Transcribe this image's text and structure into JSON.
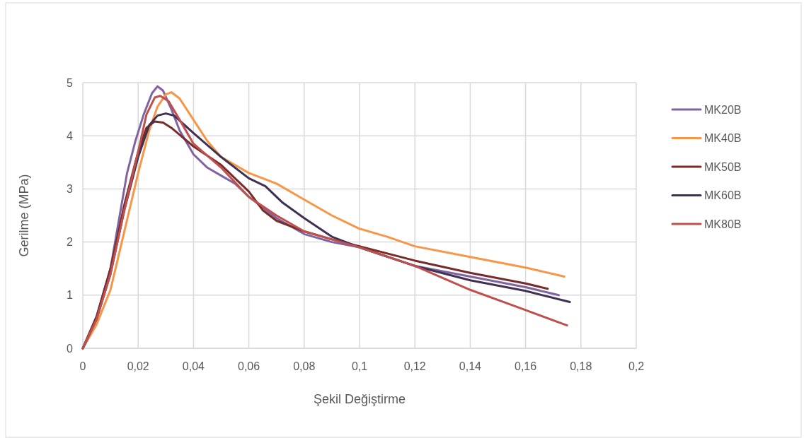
{
  "chart_data": {
    "type": "line",
    "xlabel": "Şekil Değiştirme",
    "ylabel": "Gerilme (MPa)",
    "xlim": [
      0,
      0.2
    ],
    "ylim": [
      0,
      5
    ],
    "xticks": [
      0,
      {
        "value": 0.02,
        "label": "0,02"
      },
      {
        "value": 0.04,
        "label": "0,04"
      },
      {
        "value": 0.06,
        "label": "0,06"
      },
      {
        "value": 0.08,
        "label": "0,08"
      },
      {
        "value": 0.1,
        "label": "0,1"
      },
      {
        "value": 0.12,
        "label": "0,12"
      },
      {
        "value": 0.14,
        "label": "0,14"
      },
      {
        "value": 0.16,
        "label": "0,16"
      },
      {
        "value": 0.18,
        "label": "0,18"
      },
      {
        "value": 0.2,
        "label": "0,2"
      }
    ],
    "yticks": [
      0,
      1,
      2,
      3,
      4,
      5
    ],
    "grid": true,
    "legend": "right",
    "marker": "none",
    "line_style": "solid",
    "series": [
      {
        "name": "MK20B",
        "color": "#8064a2",
        "x": [
          0,
          0.005,
          0.01,
          0.013,
          0.016,
          0.019,
          0.022,
          0.025,
          0.027,
          0.029,
          0.032,
          0.035,
          0.04,
          0.045,
          0.05,
          0.055,
          0.06,
          0.07,
          0.08,
          0.09,
          0.1,
          0.12,
          0.14,
          0.16,
          0.172
        ],
        "values": [
          0,
          0.6,
          1.5,
          2.4,
          3.3,
          3.9,
          4.4,
          4.8,
          4.93,
          4.85,
          4.5,
          4.1,
          3.65,
          3.4,
          3.25,
          3.1,
          2.85,
          2.45,
          2.15,
          2,
          1.9,
          1.55,
          1.35,
          1.15,
          1
        ]
      },
      {
        "name": "MK40B",
        "color": "#f79646",
        "x": [
          0,
          0.005,
          0.01,
          0.015,
          0.02,
          0.024,
          0.027,
          0.03,
          0.032,
          0.035,
          0.04,
          0.045,
          0.05,
          0.06,
          0.07,
          0.08,
          0.09,
          0.1,
          0.11,
          0.12,
          0.14,
          0.16,
          0.174
        ],
        "values": [
          0,
          0.45,
          1.1,
          2.2,
          3.3,
          4.1,
          4.55,
          4.78,
          4.82,
          4.7,
          4.3,
          3.9,
          3.6,
          3.3,
          3.1,
          2.8,
          2.5,
          2.25,
          2.1,
          1.92,
          1.72,
          1.52,
          1.35
        ]
      },
      {
        "name": "MK50B",
        "color": "#772c2a",
        "x": [
          0,
          0.005,
          0.01,
          0.015,
          0.02,
          0.023,
          0.026,
          0.029,
          0.032,
          0.04,
          0.05,
          0.06,
          0.065,
          0.07,
          0.08,
          0.09,
          0.1,
          0.12,
          0.14,
          0.16,
          0.168
        ],
        "values": [
          0,
          0.6,
          1.5,
          2.7,
          3.7,
          4.15,
          4.27,
          4.25,
          4.15,
          3.8,
          3.45,
          2.95,
          2.6,
          2.4,
          2.2,
          2.05,
          1.92,
          1.65,
          1.42,
          1.22,
          1.12
        ]
      },
      {
        "name": "MK60B",
        "color": "#403152",
        "x": [
          0,
          0.005,
          0.01,
          0.015,
          0.02,
          0.024,
          0.027,
          0.03,
          0.033,
          0.04,
          0.05,
          0.06,
          0.066,
          0.072,
          0.08,
          0.09,
          0.1,
          0.12,
          0.14,
          0.16,
          0.176
        ],
        "values": [
          0,
          0.55,
          1.4,
          2.6,
          3.6,
          4.2,
          4.38,
          4.42,
          4.38,
          4.05,
          3.6,
          3.2,
          3.05,
          2.75,
          2.45,
          2.1,
          1.9,
          1.55,
          1.28,
          1.08,
          0.87
        ]
      },
      {
        "name": "MK80B",
        "color": "#c0504d",
        "x": [
          0,
          0.005,
          0.01,
          0.015,
          0.02,
          0.023,
          0.026,
          0.028,
          0.031,
          0.035,
          0.04,
          0.05,
          0.06,
          0.07,
          0.08,
          0.09,
          0.1,
          0.12,
          0.14,
          0.16,
          0.175
        ],
        "values": [
          0,
          0.55,
          1.4,
          2.6,
          3.7,
          4.4,
          4.72,
          4.75,
          4.65,
          4.3,
          3.85,
          3.4,
          2.85,
          2.5,
          2.2,
          2.05,
          1.9,
          1.55,
          1.1,
          0.72,
          0.43
        ]
      }
    ]
  }
}
